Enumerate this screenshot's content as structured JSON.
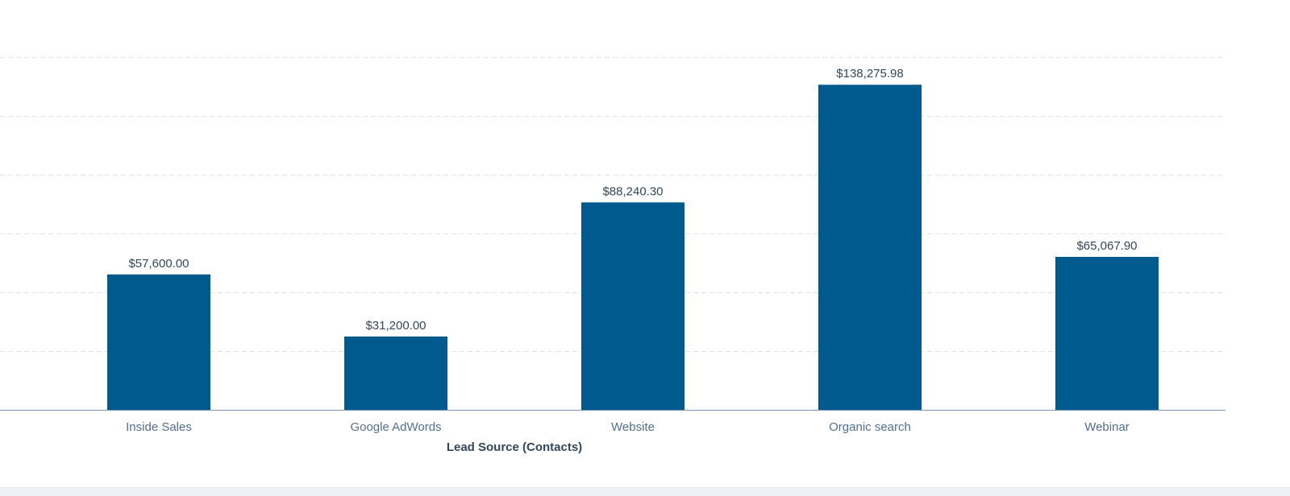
{
  "chart_data": {
    "type": "bar",
    "title": "",
    "xlabel": "Lead Source (Contacts)",
    "ylabel": "",
    "categories": [
      "Inside Sales",
      "Google AdWords",
      "Website",
      "Organic search",
      "Webinar"
    ],
    "values": [
      57600.0,
      31200.0,
      88240.3,
      138275.98,
      65067.9
    ],
    "data_labels": [
      "$57,600.00",
      "$31,200.00",
      "$88,240.30",
      "$138,275.98",
      "$65,067.90"
    ],
    "ylim": [
      0,
      150000
    ],
    "y_gridline_step": 25000,
    "grid": true,
    "legend": "none",
    "colors": {
      "bar": "#005a8d",
      "gridline": "#dfe3eb",
      "baseline": "#7c98b6",
      "data_label": "#33475b",
      "tick_label": "#516f90"
    }
  }
}
